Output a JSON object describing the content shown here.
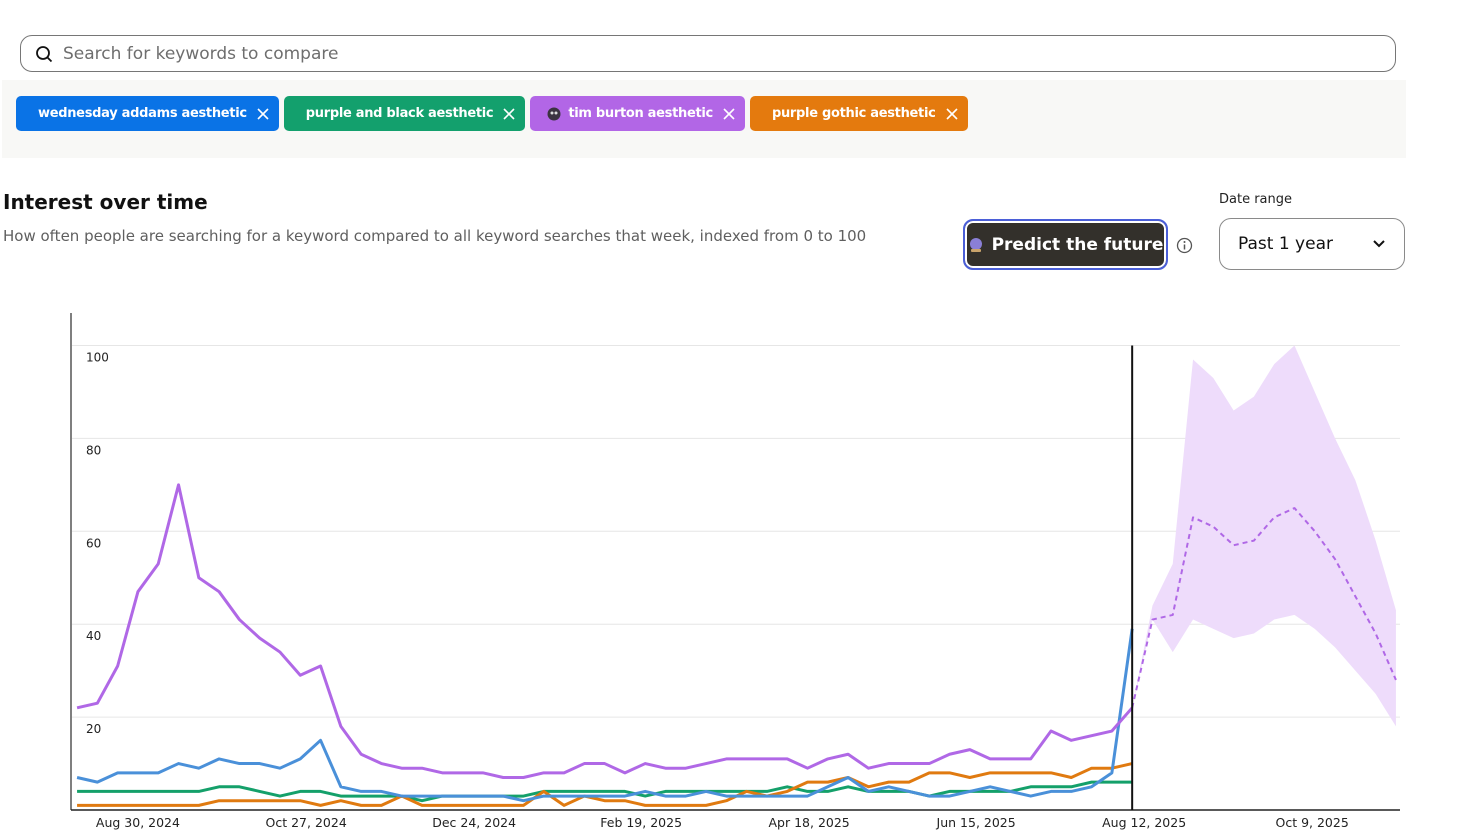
{
  "search": {
    "placeholder": "Search for keywords to compare"
  },
  "header": {
    "title": "Interest over time",
    "subtitle": "How often people are searching for a keyword compared to all keyword searches that week, indexed from 0 to 100",
    "button": "Predict the future",
    "date_range_label": "Date range",
    "date_range": "Past 1 year"
  },
  "chart_data": {
    "type": "line",
    "x": [
      0,
      1,
      2,
      3,
      4,
      5,
      6,
      7,
      8,
      9,
      10,
      11,
      12,
      13,
      14,
      15,
      16,
      17,
      18,
      19,
      20,
      21,
      22,
      23,
      24,
      25,
      26,
      27,
      28,
      29,
      30,
      31,
      32,
      33,
      34,
      35,
      36,
      37,
      38,
      39,
      40,
      41,
      42,
      43,
      44,
      45,
      46,
      47,
      48,
      49,
      50,
      51,
      52
    ],
    "series": [
      {
        "name": "wednesday addams aesthetic",
        "color": "#4a90d9",
        "chip_color": "#0a73e6",
        "values": [
          7,
          6,
          8,
          8,
          8,
          10,
          9,
          11,
          10,
          10,
          9,
          11,
          15,
          5,
          4,
          4,
          3,
          3,
          3,
          3,
          3,
          3,
          2,
          3,
          3,
          3,
          3,
          3,
          4,
          3,
          3,
          4,
          3,
          3,
          3,
          3,
          3,
          5,
          7,
          4,
          5,
          4,
          3,
          3,
          4,
          5,
          4,
          3,
          4,
          4,
          5,
          8,
          39
        ]
      },
      {
        "name": "purple and black aesthetic",
        "color": "#14a06a",
        "chip_color": "#13a06d",
        "values": [
          4,
          4,
          4,
          4,
          4,
          4,
          4,
          5,
          5,
          4,
          3,
          4,
          4,
          3,
          3,
          3,
          3,
          2,
          3,
          3,
          3,
          3,
          3,
          4,
          4,
          4,
          4,
          4,
          3,
          4,
          4,
          4,
          4,
          4,
          4,
          5,
          4,
          4,
          5,
          4,
          4,
          4,
          3,
          4,
          4,
          4,
          4,
          5,
          5,
          5,
          6,
          6,
          6
        ]
      },
      {
        "name": "tim burton aesthetic",
        "color": "#b068e6",
        "chip_color": "#b266e6",
        "values": [
          22,
          23,
          31,
          47,
          53,
          70,
          50,
          47,
          41,
          37,
          34,
          29,
          31,
          18,
          12,
          10,
          9,
          9,
          8,
          8,
          8,
          7,
          7,
          8,
          8,
          10,
          10,
          8,
          10,
          9,
          9,
          10,
          11,
          11,
          11,
          11,
          9,
          11,
          12,
          9,
          10,
          10,
          10,
          12,
          13,
          11,
          11,
          11,
          17,
          15,
          16,
          17,
          22
        ]
      },
      {
        "name": "purple gothic aesthetic",
        "color": "#e07a10",
        "chip_color": "#e47a0e",
        "values": [
          1,
          1,
          1,
          1,
          1,
          1,
          1,
          2,
          2,
          2,
          2,
          2,
          1,
          2,
          1,
          1,
          3,
          1,
          1,
          1,
          1,
          1,
          1,
          4,
          1,
          3,
          2,
          2,
          1,
          1,
          1,
          1,
          2,
          4,
          3,
          4,
          6,
          6,
          7,
          5,
          6,
          6,
          8,
          8,
          7,
          8,
          8,
          8,
          8,
          7,
          9,
          9,
          10
        ]
      }
    ],
    "forecast": {
      "color": "#b068e6",
      "band_color": "#eedcfb",
      "x": [
        52,
        53,
        54,
        55,
        56,
        57,
        58,
        59,
        60,
        61,
        62,
        63,
        64,
        65
      ],
      "values": [
        22,
        41,
        42,
        63,
        61,
        57,
        58,
        63,
        65,
        60,
        54,
        46,
        38,
        28
      ],
      "upper": [
        22,
        44,
        53,
        97,
        93,
        86,
        89,
        96,
        100,
        90,
        80,
        71,
        58,
        43
      ],
      "lower": [
        22,
        41,
        34,
        41,
        39,
        37,
        38,
        41,
        42,
        39,
        35,
        30,
        25,
        18
      ]
    },
    "xlim": [
      -0.25,
      65.2
    ],
    "xticks": [
      {
        "value": 3.0,
        "label": "Aug 30, 2024"
      },
      {
        "value": 11.29,
        "label": "Oct 27, 2024"
      },
      {
        "value": 19.57,
        "label": "Dec 24, 2024"
      },
      {
        "value": 27.8,
        "label": "Feb 19, 2025"
      },
      {
        "value": 36.08,
        "label": "Apr 18, 2025"
      },
      {
        "value": 44.31,
        "label": "Jun 15, 2025"
      },
      {
        "value": 52.59,
        "label": "Aug 12, 2025"
      },
      {
        "value": 60.87,
        "label": "Oct 9, 2025"
      }
    ],
    "ylim": [
      0,
      107
    ],
    "yticks": [
      20,
      40,
      60,
      80,
      100
    ],
    "grid": true
  }
}
